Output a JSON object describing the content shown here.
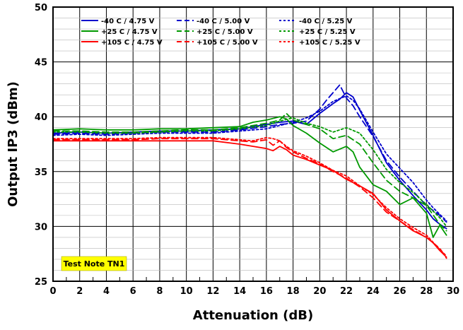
{
  "chart_data": {
    "type": "line",
    "xlabel": "Attenuation (dB)",
    "ylabel": "Output IP3 (dBm)",
    "xlim": [
      0,
      30
    ],
    "ylim": [
      25,
      50
    ],
    "xticks": [
      0,
      2,
      4,
      6,
      8,
      10,
      12,
      14,
      16,
      18,
      20,
      22,
      24,
      26,
      28,
      30
    ],
    "yticks": [
      25,
      30,
      35,
      40,
      45,
      50
    ],
    "grid": true,
    "legend_position": "top",
    "annotation": "Test Note TN1",
    "annotation_color": "#ffff00",
    "series": [
      {
        "name": "-40 C /  4.75 V",
        "color": "#0000cc",
        "dash": "solid",
        "x": [
          0,
          2,
          4,
          6,
          8,
          10,
          12,
          14,
          16,
          17,
          18,
          19,
          20,
          21,
          21.5,
          22,
          22.5,
          23,
          24,
          25,
          26,
          27,
          28,
          28.5,
          29,
          29.5
        ],
        "y": [
          38.5,
          38.6,
          38.5,
          38.6,
          38.7,
          38.7,
          38.8,
          38.9,
          39.3,
          39.5,
          39.6,
          39.3,
          40.3,
          41.2,
          41.6,
          42.2,
          41.8,
          40.6,
          38.3,
          35.8,
          34.2,
          32.8,
          31.5,
          30.7,
          30.2,
          29.8
        ]
      },
      {
        "name": "-40 C /  5.00 V",
        "color": "#0000cc",
        "dash": "dashed",
        "x": [
          0,
          2,
          4,
          6,
          8,
          10,
          12,
          14,
          16,
          17,
          18,
          19,
          20,
          20.5,
          21,
          21.5,
          22,
          22.5,
          23,
          24,
          25,
          26,
          27,
          28,
          29,
          29.5
        ],
        "y": [
          38.4,
          38.5,
          38.4,
          38.5,
          38.6,
          38.6,
          38.6,
          38.8,
          39.1,
          39.3,
          39.4,
          39.6,
          40.7,
          41.5,
          42.2,
          42.9,
          41.7,
          41.0,
          40.0,
          38.2,
          36.0,
          34.5,
          33.2,
          31.9,
          31.0,
          30.4
        ]
      },
      {
        "name": "-40 C /  5.25 V",
        "color": "#0000cc",
        "dash": "dotted",
        "x": [
          0,
          2,
          4,
          6,
          8,
          10,
          12,
          14,
          16,
          17,
          18,
          19,
          20,
          21,
          22,
          22.5,
          23,
          24,
          25,
          26,
          27,
          28,
          28.5,
          29,
          29.5
        ],
        "y": [
          38.3,
          38.4,
          38.3,
          38.4,
          38.5,
          38.5,
          38.5,
          38.7,
          38.9,
          39.2,
          39.5,
          39.9,
          40.5,
          41.4,
          41.9,
          41.5,
          40.7,
          38.6,
          36.6,
          35.3,
          34.0,
          32.4,
          31.7,
          31.1,
          30.5
        ]
      },
      {
        "name": "+25 C /  4.75 V",
        "color": "#009900",
        "dash": "solid",
        "x": [
          0,
          2,
          4,
          6,
          8,
          10,
          12,
          14,
          15,
          16,
          17,
          17.5,
          18,
          19,
          20,
          21,
          22,
          22.5,
          23,
          24,
          25,
          26,
          27,
          28,
          28.5,
          29,
          29.5
        ],
        "y": [
          38.8,
          38.9,
          38.8,
          38.8,
          38.9,
          38.9,
          39.0,
          39.1,
          39.5,
          39.7,
          40.0,
          39.8,
          39.2,
          38.5,
          37.6,
          36.8,
          37.3,
          36.8,
          35.4,
          33.8,
          33.2,
          32.0,
          32.6,
          31.2,
          29.0,
          30.1,
          29.2
        ]
      },
      {
        "name": "+25 C /  5.00 V",
        "color": "#009900",
        "dash": "dashed",
        "x": [
          0,
          2,
          4,
          6,
          8,
          10,
          12,
          14,
          16,
          17,
          17.5,
          18,
          19,
          20,
          21,
          22,
          23,
          24,
          25,
          26,
          27,
          28,
          29,
          29.5
        ],
        "y": [
          38.7,
          38.7,
          38.6,
          38.6,
          38.7,
          38.8,
          38.8,
          39.0,
          39.4,
          39.7,
          40.3,
          39.7,
          39.3,
          38.9,
          38.0,
          38.3,
          37.5,
          35.8,
          34.2,
          33.2,
          32.6,
          31.9,
          30.2,
          29.6
        ]
      },
      {
        "name": "+25 C /  5.25 V",
        "color": "#009900",
        "dash": "dotted",
        "x": [
          0,
          2,
          4,
          6,
          8,
          10,
          12,
          14,
          16,
          17,
          18,
          19,
          20,
          21,
          22,
          23,
          24,
          25,
          26,
          27,
          28,
          29,
          29.5
        ],
        "y": [
          38.6,
          38.6,
          38.5,
          38.5,
          38.6,
          38.7,
          38.7,
          38.9,
          39.2,
          39.6,
          39.9,
          39.4,
          39.1,
          38.6,
          39.0,
          38.5,
          37.0,
          35.2,
          34.0,
          33.1,
          32.0,
          30.8,
          30.0
        ]
      },
      {
        "name": "+105 C /  4.75 V",
        "color": "#ff0000",
        "dash": "solid",
        "x": [
          0,
          2,
          4,
          6,
          8,
          10,
          12,
          14,
          15,
          16,
          16.5,
          17,
          17.5,
          18,
          19,
          20,
          21,
          22,
          23,
          24,
          25,
          26,
          27,
          28,
          28.5,
          29,
          29.5
        ],
        "y": [
          37.8,
          37.8,
          37.8,
          37.8,
          37.8,
          37.8,
          37.8,
          37.5,
          37.3,
          37.1,
          36.9,
          37.3,
          37.0,
          36.5,
          36.1,
          35.6,
          35.1,
          34.3,
          33.7,
          33.0,
          31.5,
          30.5,
          29.6,
          29.0,
          28.5,
          27.8,
          27.2
        ]
      },
      {
        "name": "+105 C /  5.00 V",
        "color": "#ff0000",
        "dash": "dashed",
        "x": [
          0,
          2,
          4,
          6,
          8,
          10,
          12,
          14,
          15,
          16,
          16.5,
          17,
          17.5,
          18,
          19,
          20,
          21,
          22,
          23,
          24,
          25,
          26,
          27,
          28,
          29,
          29.5
        ],
        "y": [
          37.9,
          37.9,
          37.9,
          37.9,
          38.0,
          38.0,
          38.0,
          37.8,
          37.7,
          37.9,
          37.4,
          37.8,
          37.2,
          36.8,
          36.2,
          35.7,
          35.0,
          34.4,
          33.6,
          32.6,
          31.3,
          30.5,
          29.7,
          29.0,
          28.0,
          27.1
        ]
      },
      {
        "name": "+105 C /  5.25 V",
        "color": "#ff0000",
        "dash": "dotted",
        "x": [
          0,
          2,
          4,
          6,
          8,
          10,
          12,
          14,
          15,
          16,
          16.5,
          17,
          17.5,
          18,
          19,
          20,
          21,
          22,
          23,
          24,
          25,
          26,
          27,
          28,
          29,
          29.5
        ],
        "y": [
          38.0,
          38.0,
          38.0,
          38.0,
          38.1,
          38.1,
          38.1,
          37.9,
          37.8,
          38.1,
          38.0,
          37.8,
          37.3,
          36.9,
          36.4,
          35.8,
          35.1,
          34.6,
          33.7,
          32.9,
          31.7,
          30.7,
          29.9,
          29.2,
          27.9,
          27.3
        ]
      }
    ]
  }
}
